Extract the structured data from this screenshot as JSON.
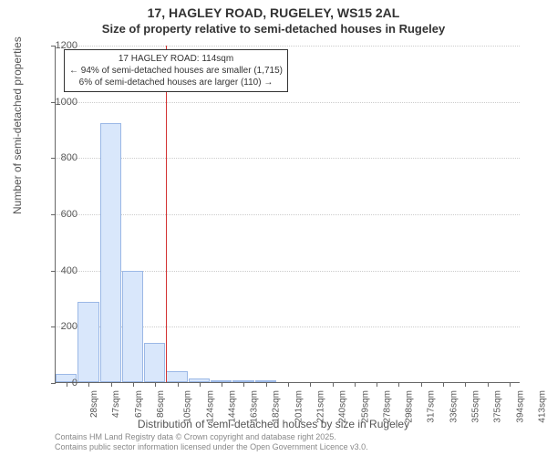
{
  "title": {
    "line1": "17, HAGLEY ROAD, RUGELEY, WS15 2AL",
    "line2": "Size of property relative to semi-detached houses in Rugeley"
  },
  "chart": {
    "type": "histogram",
    "ylabel": "Number of semi-detached properties",
    "xlabel": "Distribution of semi-detached houses by size in Rugeley",
    "ylim": [
      0,
      1200
    ],
    "ytick_step": 200,
    "bar_fill": "#d9e7fb",
    "bar_stroke": "#9bb8e6",
    "grid_color": "#cccccc",
    "axis_color": "#666666",
    "background": "#ffffff",
    "label_fontsize": 12,
    "tick_fontsize": 10,
    "x_categories": [
      "28sqm",
      "47sqm",
      "67sqm",
      "86sqm",
      "105sqm",
      "124sqm",
      "144sqm",
      "163sqm",
      "182sqm",
      "201sqm",
      "221sqm",
      "240sqm",
      "259sqm",
      "278sqm",
      "298sqm",
      "317sqm",
      "336sqm",
      "355sqm",
      "375sqm",
      "394sqm",
      "413sqm"
    ],
    "values": [
      30,
      285,
      920,
      395,
      140,
      40,
      12,
      6,
      2,
      2,
      0,
      0,
      0,
      0,
      0,
      0,
      0,
      0,
      0,
      0,
      0
    ],
    "marker": {
      "position_index": 4.47,
      "color": "#d33333"
    },
    "annotation": {
      "line1": "17 HAGLEY ROAD: 114sqm",
      "line2": "← 94% of semi-detached houses are smaller (1,715)",
      "line3": "6% of semi-detached houses are larger (110) →",
      "border_color": "#333333",
      "background": "#ffffff"
    }
  },
  "footer": {
    "line1": "Contains HM Land Registry data © Crown copyright and database right 2025.",
    "line2": "Contains public sector information licensed under the Open Government Licence v3.0."
  }
}
